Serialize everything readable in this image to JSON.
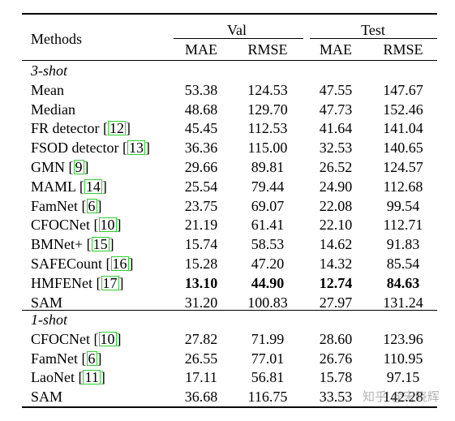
{
  "header": {
    "methods_label": "Methods",
    "val_label": "Val",
    "test_label": "Test",
    "columns": [
      "MAE",
      "RMSE",
      "MAE",
      "RMSE"
    ]
  },
  "sections": [
    {
      "label": "3-shot",
      "rows": [
        {
          "name": "Mean",
          "cite": "",
          "values": [
            "53.38",
            "124.53",
            "47.55",
            "147.67"
          ],
          "bold": false
        },
        {
          "name": "Median",
          "cite": "",
          "values": [
            "48.68",
            "129.70",
            "47.73",
            "152.46"
          ],
          "bold": false
        },
        {
          "name": "FR detector",
          "cite": "12",
          "values": [
            "45.45",
            "112.53",
            "41.64",
            "141.04"
          ],
          "bold": false
        },
        {
          "name": "FSOD detector",
          "cite": "13",
          "values": [
            "36.36",
            "115.00",
            "32.53",
            "140.65"
          ],
          "bold": false
        },
        {
          "name": "GMN",
          "cite": "9",
          "values": [
            "29.66",
            "89.81",
            "26.52",
            "124.57"
          ],
          "bold": false
        },
        {
          "name": "MAML",
          "cite": "14",
          "values": [
            "25.54",
            "79.44",
            "24.90",
            "112.68"
          ],
          "bold": false
        },
        {
          "name": "FamNet",
          "cite": "6",
          "values": [
            "23.75",
            "69.07",
            "22.08",
            "99.54"
          ],
          "bold": false
        },
        {
          "name": "CFOCNet",
          "cite": "10",
          "values": [
            "21.19",
            "61.41",
            "22.10",
            "112.71"
          ],
          "bold": false
        },
        {
          "name": "BMNet+",
          "cite": "15",
          "values": [
            "15.74",
            "58.53",
            "14.62",
            "91.83"
          ],
          "bold": false
        },
        {
          "name": "SAFECount",
          "cite": "16",
          "values": [
            "15.28",
            "47.20",
            "14.32",
            "85.54"
          ],
          "bold": false
        },
        {
          "name": "HMFENet",
          "cite": "17",
          "values": [
            "13.10",
            "44.90",
            "12.74",
            "84.63"
          ],
          "bold": true
        },
        {
          "name": "SAM",
          "cite": "",
          "values": [
            "31.20",
            "100.83",
            "27.97",
            "131.24"
          ],
          "bold": false
        }
      ]
    },
    {
      "label": "1-shot",
      "rows": [
        {
          "name": "CFOCNet",
          "cite": "10",
          "values": [
            "27.82",
            "71.99",
            "28.60",
            "123.96"
          ],
          "bold": false
        },
        {
          "name": "FamNet",
          "cite": "6",
          "values": [
            "26.55",
            "77.01",
            "26.76",
            "110.95"
          ],
          "bold": false
        },
        {
          "name": "LaoNet",
          "cite": "11",
          "values": [
            "17.11",
            "56.81",
            "15.78",
            "97.15"
          ],
          "bold": false
        },
        {
          "name": "SAM",
          "cite": "",
          "values": [
            "36.68",
            "116.75",
            "33.53",
            "142.28"
          ],
          "bold": false
        }
      ]
    }
  ],
  "watermark": "知乎 @宋晓辉"
}
